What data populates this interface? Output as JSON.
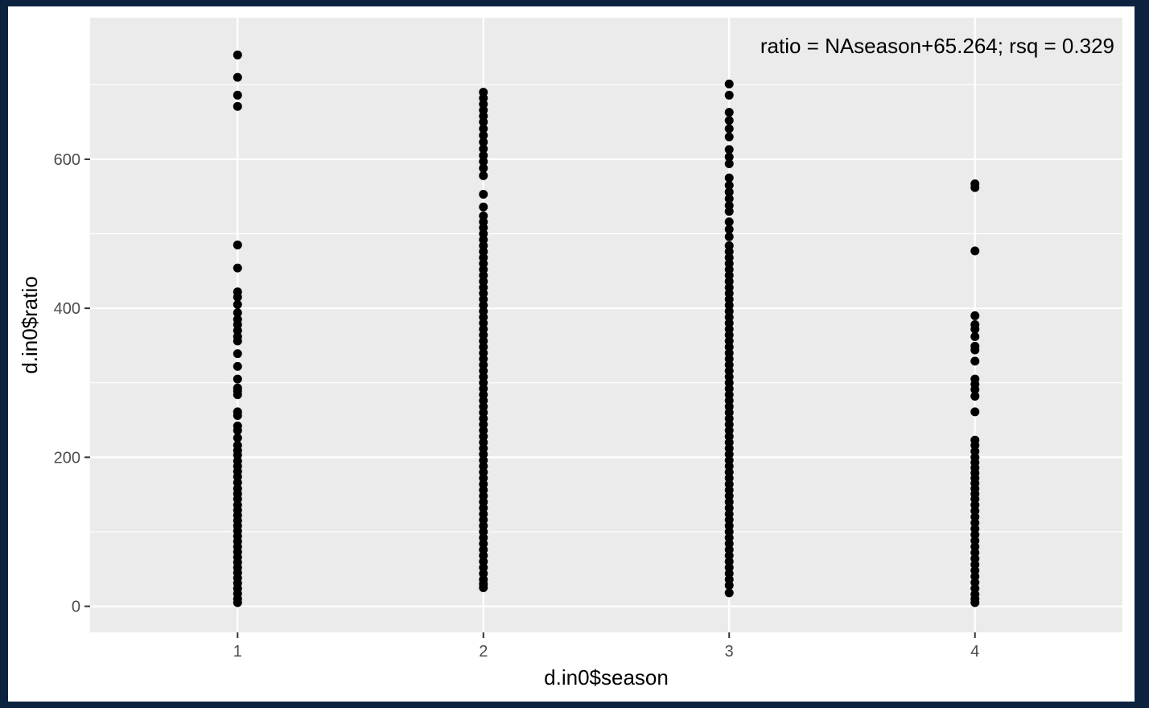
{
  "chart_data": {
    "type": "scatter",
    "title": "",
    "xlabel": "d.in0$season",
    "ylabel": "d.in0$ratio",
    "annotation": "ratio = NAseason+65.264; rsq = 0.329",
    "xlim": [
      0.4,
      4.6
    ],
    "ylim": [
      -35,
      790
    ],
    "x_ticks": [
      1,
      2,
      3,
      4
    ],
    "y_ticks": [
      0,
      200,
      400,
      600
    ],
    "y_minor_ticks": [
      100,
      300,
      500,
      700
    ],
    "grid": true,
    "panel_color": "#ebebeb",
    "point_color": "#000000",
    "series": [
      {
        "x": 1,
        "y": [
          740,
          710,
          686,
          671,
          485,
          454,
          422,
          415,
          405,
          394,
          385,
          378,
          370,
          362,
          356,
          339,
          322,
          305,
          293,
          289,
          284,
          261,
          256,
          242,
          236,
          226,
          216,
          209,
          203,
          195,
          188,
          181,
          174,
          166,
          158,
          151,
          144,
          136,
          129,
          122,
          115,
          108,
          101,
          94,
          87,
          80,
          73,
          66,
          59,
          52,
          45,
          38,
          31,
          24,
          17,
          10,
          5
        ]
      },
      {
        "x": 2,
        "y": [
          690,
          682,
          674,
          666,
          658,
          650,
          641,
          632,
          623,
          614,
          605,
          597,
          588,
          578,
          553,
          536,
          524,
          516,
          508,
          500,
          492,
          484,
          476,
          468,
          460,
          452,
          444,
          436,
          428,
          420,
          412,
          404,
          396,
          388,
          380,
          372,
          364,
          356,
          348,
          340,
          332,
          324,
          316,
          308,
          300,
          292,
          284,
          276,
          268,
          260,
          252,
          244,
          236,
          228,
          220,
          212,
          204,
          196,
          188,
          180,
          172,
          164,
          156,
          148,
          140,
          132,
          124,
          116,
          108,
          100,
          92,
          84,
          76,
          68,
          60,
          52,
          44,
          36,
          30,
          25
        ]
      },
      {
        "x": 3,
        "y": [
          701,
          686,
          663,
          652,
          641,
          630,
          613,
          603,
          594,
          575,
          565,
          556,
          547,
          538,
          530,
          516,
          506,
          496,
          484,
          476,
          468,
          460,
          452,
          444,
          436,
          428,
          420,
          412,
          404,
          396,
          388,
          380,
          372,
          364,
          356,
          348,
          340,
          332,
          324,
          316,
          308,
          300,
          292,
          284,
          276,
          268,
          260,
          252,
          244,
          236,
          228,
          220,
          212,
          204,
          196,
          188,
          180,
          172,
          164,
          156,
          148,
          140,
          132,
          124,
          116,
          108,
          100,
          92,
          84,
          76,
          68,
          60,
          52,
          44,
          36,
          28,
          18
        ]
      },
      {
        "x": 4,
        "y": [
          567,
          562,
          477,
          390,
          378,
          372,
          362,
          349,
          344,
          329,
          305,
          298,
          291,
          282,
          261,
          223,
          216,
          208,
          200,
          193,
          186,
          179,
          172,
          165,
          158,
          151,
          144,
          136,
          128,
          120,
          112,
          104,
          96,
          88,
          80,
          72,
          64,
          56,
          48,
          40,
          32,
          24,
          16,
          10,
          5
        ]
      }
    ]
  }
}
